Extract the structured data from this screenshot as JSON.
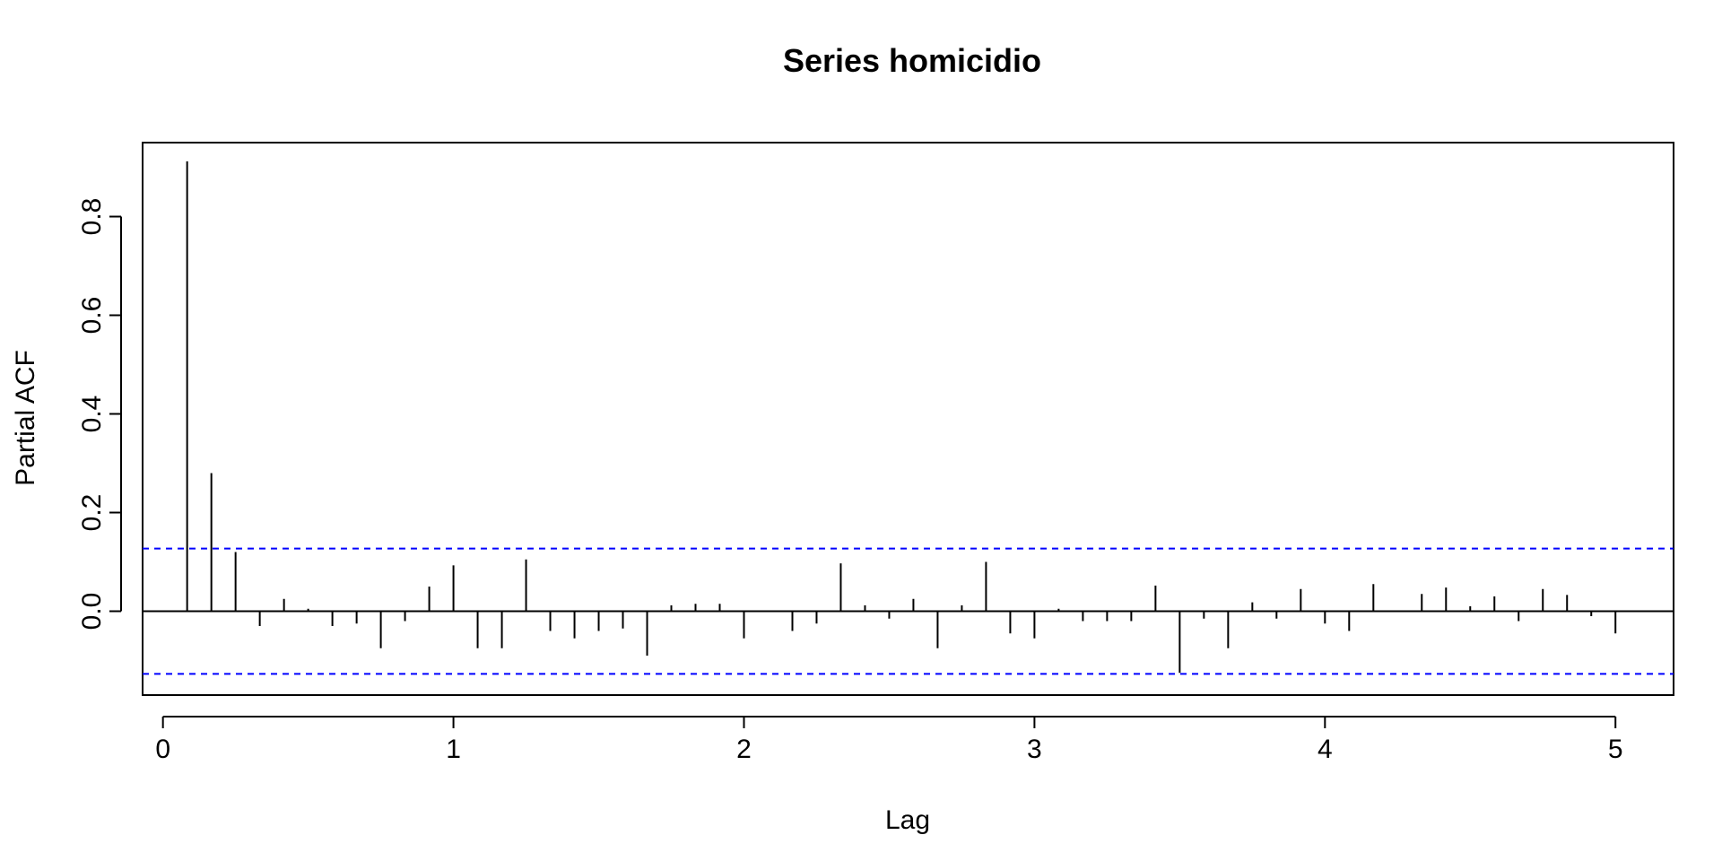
{
  "chart_data": {
    "type": "bar",
    "title": "Series  homicidio",
    "xlabel": "Lag",
    "ylabel": "Partial ACF",
    "xlim": [
      -0.07,
      5.2
    ],
    "ylim": [
      -0.17,
      0.95
    ],
    "xticks": [
      "0",
      "1",
      "2",
      "3",
      "4",
      "5"
    ],
    "yticks": [
      "0.0",
      "0.2",
      "0.4",
      "0.6",
      "0.8"
    ],
    "confidence_bound": 0.127,
    "colors": {
      "bars": "#000000",
      "ci": "#0000ff",
      "frame": "#000000"
    },
    "grid": false,
    "lags": [
      0.0833,
      0.1667,
      0.25,
      0.3333,
      0.4167,
      0.5,
      0.5833,
      0.6667,
      0.75,
      0.8333,
      0.9167,
      1.0,
      1.0833,
      1.1667,
      1.25,
      1.3333,
      1.4167,
      1.5,
      1.5833,
      1.6667,
      1.75,
      1.8333,
      1.9167,
      2.0,
      2.0833,
      2.1667,
      2.25,
      2.3333,
      2.4167,
      2.5,
      2.5833,
      2.6667,
      2.75,
      2.8333,
      2.9167,
      3.0,
      3.0833,
      3.1667,
      3.25,
      3.3333,
      3.4167,
      3.5,
      3.5833,
      3.6667,
      3.75,
      3.8333,
      3.9167,
      4.0,
      4.0833,
      4.1667,
      4.25,
      4.3333,
      4.4167,
      4.5,
      4.5833,
      4.6667,
      4.75,
      4.8333,
      4.9167,
      5.0
    ],
    "values": [
      0.912,
      0.28,
      0.12,
      -0.03,
      0.025,
      0.005,
      -0.03,
      -0.025,
      -0.075,
      -0.02,
      0.05,
      0.093,
      -0.075,
      -0.075,
      0.105,
      -0.04,
      -0.055,
      -0.04,
      -0.035,
      -0.09,
      0.012,
      0.015,
      0.015,
      -0.055,
      0.0,
      -0.04,
      -0.025,
      0.097,
      0.012,
      -0.015,
      0.025,
      -0.075,
      0.012,
      0.1,
      -0.045,
      -0.055,
      0.005,
      -0.02,
      -0.02,
      -0.02,
      0.052,
      -0.125,
      -0.015,
      -0.075,
      0.018,
      -0.015,
      0.045,
      -0.025,
      -0.04,
      0.055,
      0.0,
      0.035,
      0.048,
      0.01,
      0.03,
      -0.02,
      0.045,
      0.033,
      -0.01,
      -0.045
    ]
  }
}
